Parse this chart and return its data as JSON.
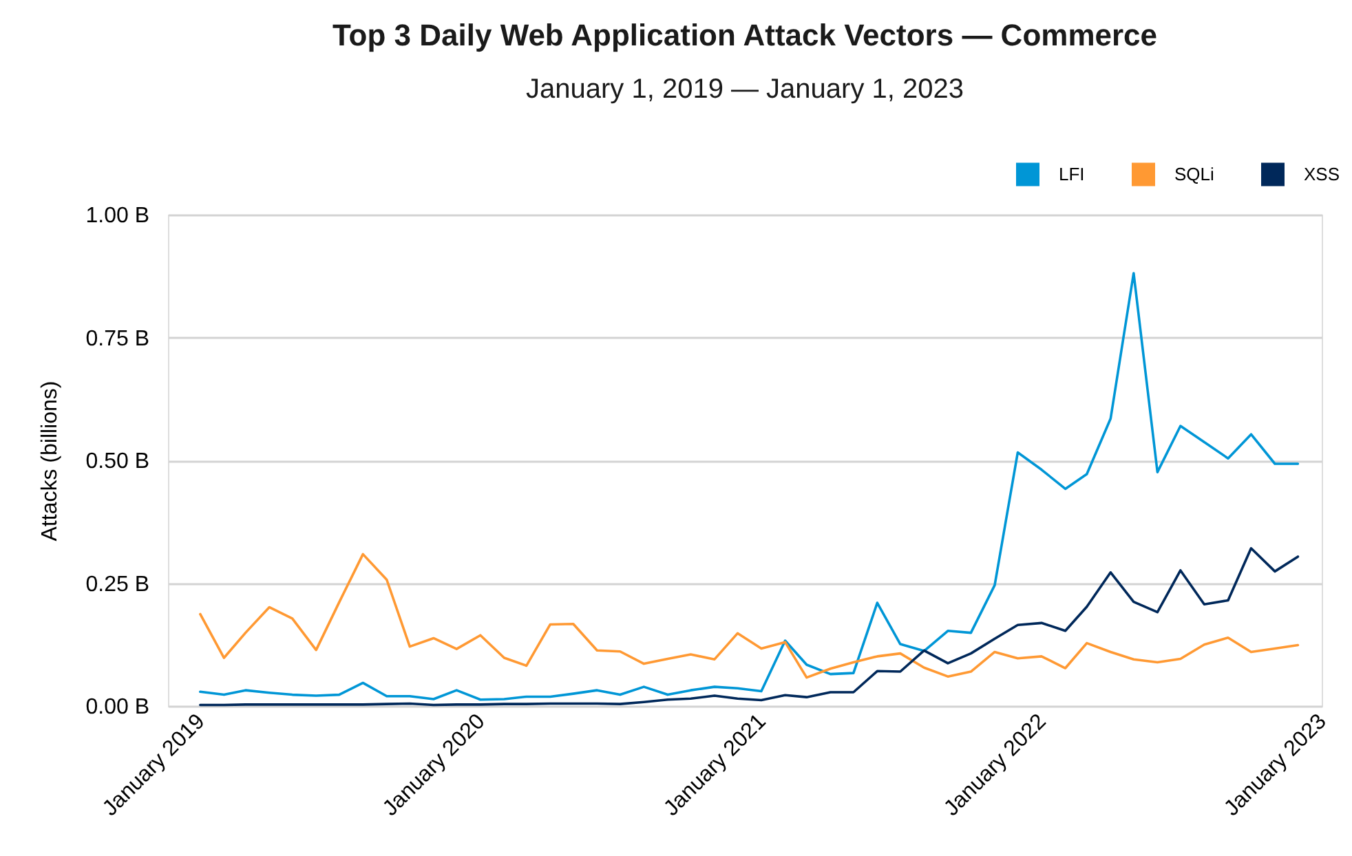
{
  "chart_data": {
    "type": "line",
    "title": "Top 3 Daily Web Application Attack Vectors — Commerce",
    "subtitle": "January 1, 2019 — January 1, 2023",
    "ylabel": "Attacks (billions)",
    "x": [
      "2019-01",
      "2019-02",
      "2019-03",
      "2019-04",
      "2019-05",
      "2019-06",
      "2019-07",
      "2019-08",
      "2019-09",
      "2019-10",
      "2019-11",
      "2019-12",
      "2020-01",
      "2020-02",
      "2020-03",
      "2020-04",
      "2020-05",
      "2020-06",
      "2020-07",
      "2020-08",
      "2020-09",
      "2020-10",
      "2020-11",
      "2020-12",
      "2021-01",
      "2021-02",
      "2021-03",
      "2021-04",
      "2021-05",
      "2021-06",
      "2021-07",
      "2021-08",
      "2021-09",
      "2021-10",
      "2021-11",
      "2021-12",
      "2022-01",
      "2022-02",
      "2022-03",
      "2022-04",
      "2022-05",
      "2022-06",
      "2022-07",
      "2022-08",
      "2022-09",
      "2022-10",
      "2022-11",
      "2022-12"
    ],
    "xlim": [
      "2018-11-20",
      "2023-01-01"
    ],
    "xticks": [
      {
        "value": "2019-01",
        "label": "January 2019"
      },
      {
        "value": "2020-01",
        "label": "January 2020"
      },
      {
        "value": "2021-01",
        "label": "January 2021"
      },
      {
        "value": "2022-01",
        "label": "January 2022"
      },
      {
        "value": "2023-01",
        "label": "January 2023"
      }
    ],
    "ylim": [
      0,
      1
    ],
    "yticks": [
      {
        "value": 0,
        "label": "0.00 B"
      },
      {
        "value": 0.25,
        "label": "0.25 B"
      },
      {
        "value": 0.5,
        "label": "0.50 B"
      },
      {
        "value": 0.75,
        "label": "0.75 B"
      },
      {
        "value": 1,
        "label": "1.00 B"
      }
    ],
    "grid": "y",
    "legend": "top right",
    "series": [
      {
        "name": "LFI",
        "color": "#0096d6",
        "values": [
          0.029,
          0.023,
          0.032,
          0.027,
          0.023,
          0.021,
          0.023,
          0.047,
          0.02,
          0.02,
          0.014,
          0.032,
          0.013,
          0.014,
          0.019,
          0.019,
          0.025,
          0.032,
          0.023,
          0.039,
          0.023,
          0.032,
          0.039,
          0.036,
          0.03,
          0.133,
          0.084,
          0.065,
          0.067,
          0.21,
          0.126,
          0.112,
          0.153,
          0.149,
          0.246,
          0.516,
          0.481,
          0.442,
          0.472,
          0.585,
          0.881,
          0.476,
          0.57,
          0.537,
          0.504,
          0.553,
          0.493,
          0.493
        ]
      },
      {
        "name": "SQLi",
        "color": "#ff9933",
        "values": [
          0.187,
          0.098,
          0.149,
          0.201,
          0.178,
          0.114,
          0.211,
          0.309,
          0.257,
          0.121,
          0.138,
          0.116,
          0.144,
          0.098,
          0.082,
          0.166,
          0.167,
          0.113,
          0.111,
          0.086,
          0.096,
          0.105,
          0.095,
          0.148,
          0.117,
          0.13,
          0.058,
          0.076,
          0.089,
          0.101,
          0.107,
          0.078,
          0.06,
          0.07,
          0.11,
          0.097,
          0.101,
          0.077,
          0.128,
          0.11,
          0.095,
          0.089,
          0.096,
          0.125,
          0.139,
          0.11,
          0.117,
          0.124
        ]
      },
      {
        "name": "XSS",
        "color": "#00285a",
        "values": [
          0.002,
          0.002,
          0.003,
          0.003,
          0.003,
          0.003,
          0.003,
          0.003,
          0.004,
          0.005,
          0.002,
          0.003,
          0.003,
          0.004,
          0.004,
          0.005,
          0.005,
          0.005,
          0.004,
          0.008,
          0.013,
          0.015,
          0.021,
          0.015,
          0.012,
          0.022,
          0.018,
          0.028,
          0.028,
          0.071,
          0.07,
          0.113,
          0.087,
          0.107,
          0.137,
          0.165,
          0.169,
          0.153,
          0.202,
          0.272,
          0.212,
          0.191,
          0.276,
          0.207,
          0.215,
          0.321,
          0.274,
          0.304
        ]
      }
    ]
  }
}
